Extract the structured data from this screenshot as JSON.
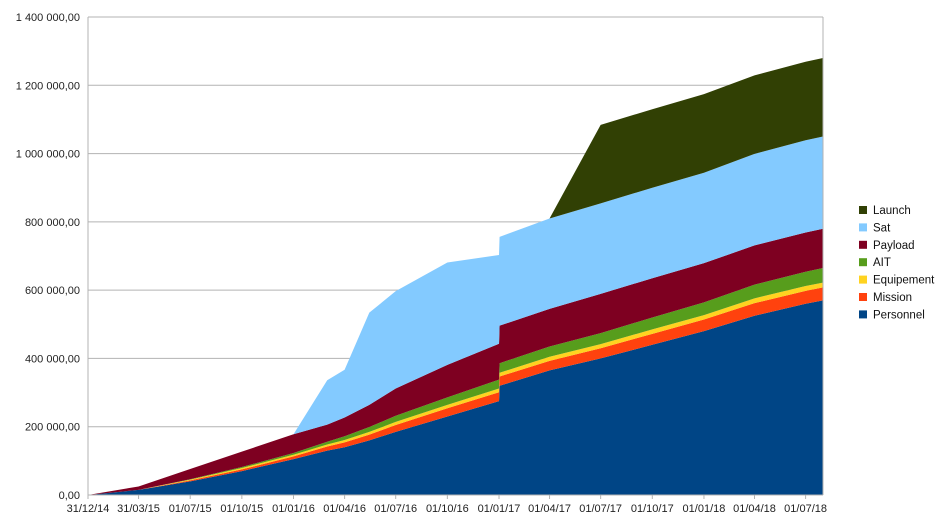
{
  "chart_data": {
    "type": "area",
    "stacked": true,
    "grid": "horizontal",
    "legend_position": "right",
    "title": "",
    "xlabel": "",
    "ylabel": "",
    "ylim": [
      0,
      1400000
    ],
    "y_ticks": [
      0,
      200000,
      400000,
      600000,
      800000,
      1000000,
      1200000,
      1400000
    ],
    "y_tick_labels": [
      "0,00",
      "200 000,00",
      "400 000,00",
      "600 000,00",
      "800 000,00",
      "1 000 000,00",
      "1 200 000,00",
      "1 400 000,00"
    ],
    "x_ticks": [
      "31/12/14",
      "31/03/15",
      "01/07/15",
      "01/10/15",
      "01/01/16",
      "01/04/16",
      "01/07/16",
      "01/10/16",
      "01/01/17",
      "01/04/17",
      "01/07/17",
      "01/10/17",
      "01/01/18",
      "01/04/18",
      "01/07/18"
    ],
    "x": [
      "31/12/14",
      "31/03/15",
      "01/07/15",
      "01/10/15",
      "01/01/16",
      "01/03/16",
      "01/04/16",
      "15/05/16",
      "01/07/16",
      "01/10/16",
      "01/01/17",
      "02/01/17",
      "01/04/17",
      "01/07/17",
      "01/10/17",
      "01/01/18",
      "01/04/18",
      "01/07/18",
      "01/08/18"
    ],
    "series": [
      {
        "name": "Personnel",
        "color": "#004586",
        "values": [
          0,
          15000,
          40000,
          70000,
          105000,
          130000,
          140000,
          160000,
          185000,
          230000,
          275000,
          320000,
          365000,
          400000,
          440000,
          480000,
          525000,
          560000,
          570000
        ]
      },
      {
        "name": "Mission",
        "color": "#ff420e",
        "values": [
          0,
          0,
          3000,
          5000,
          8000,
          12000,
          14000,
          17000,
          20000,
          24000,
          26000,
          27000,
          28000,
          30000,
          32000,
          34000,
          37000,
          38000,
          38000
        ]
      },
      {
        "name": "Equipement",
        "color": "#ffd320",
        "values": [
          0,
          0,
          2000,
          4000,
          5000,
          6000,
          7000,
          8000,
          9000,
          10000,
          11000,
          11000,
          12000,
          12000,
          13000,
          13000,
          14000,
          14000,
          14000
        ]
      },
      {
        "name": "AIT",
        "color": "#579d1c",
        "values": [
          0,
          0,
          1000,
          3000,
          5000,
          8000,
          11000,
          14000,
          18000,
          22000,
          26000,
          28000,
          30000,
          32000,
          35000,
          37000,
          40000,
          42000,
          43000
        ]
      },
      {
        "name": "Payload",
        "color": "#7e0021",
        "values": [
          0,
          10000,
          30000,
          45000,
          55000,
          50000,
          55000,
          65000,
          80000,
          95000,
          105000,
          110000,
          110000,
          115000,
          115000,
          115000,
          115000,
          115000,
          115000
        ]
      },
      {
        "name": "Sat",
        "color": "#83caff",
        "values": [
          0,
          0,
          0,
          0,
          0,
          130000,
          140000,
          270000,
          285000,
          300000,
          260000,
          260000,
          265000,
          265000,
          265000,
          265000,
          268000,
          270000,
          270000
        ]
      },
      {
        "name": "Launch",
        "color": "#314004",
        "values": [
          0,
          0,
          0,
          0,
          0,
          0,
          0,
          0,
          0,
          0,
          0,
          0,
          0,
          230000,
          230000,
          230000,
          230000,
          230000,
          230000
        ]
      }
    ]
  }
}
